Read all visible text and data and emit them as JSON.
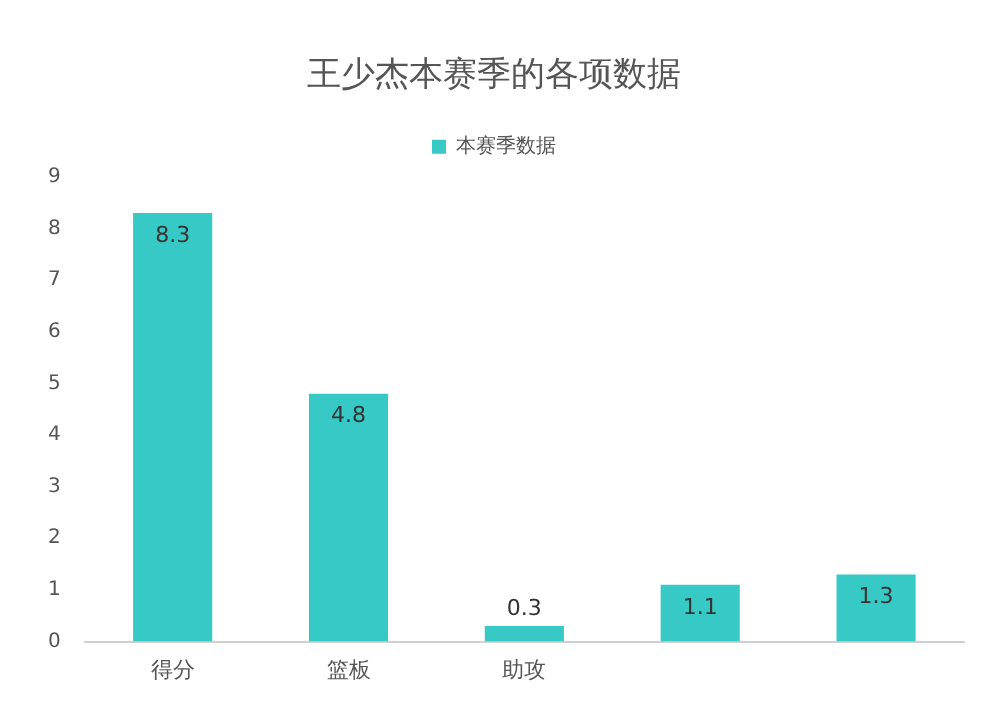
{
  "chart_data": {
    "type": "bar",
    "title": "王少杰本赛季的各项数据",
    "categories": [
      "得分",
      "篮板",
      "助攻",
      null,
      null
    ],
    "series": [
      {
        "name": "本赛季数据",
        "color": "#36c9c6",
        "values": [
          8.3,
          4.8,
          0.3,
          1.1,
          1.3
        ]
      }
    ],
    "ylim": [
      0,
      9
    ],
    "yticks": [
      0,
      1,
      2,
      3,
      4,
      5,
      6,
      7,
      8,
      9
    ],
    "grid": false,
    "legend": "top",
    "data_labels": true
  }
}
